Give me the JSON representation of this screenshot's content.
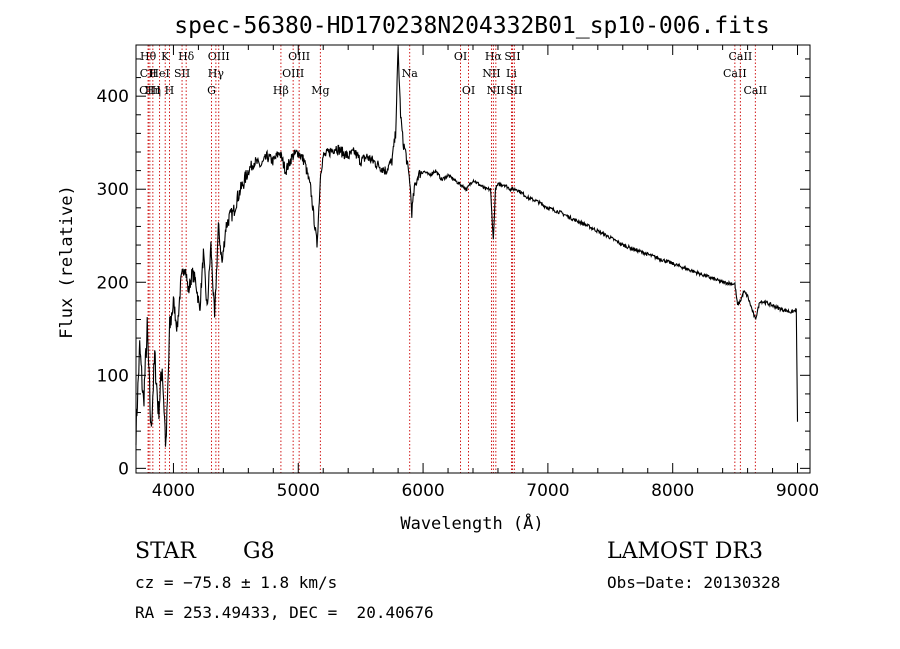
{
  "chart_data": {
    "type": "line",
    "title": "spec-56380-HD170238N204332B01_sp10-006.fits",
    "xlabel": "Wavelength (Å)",
    "ylabel": "Flux (relative)",
    "xlim": [
      3700,
      9100
    ],
    "ylim": [
      -5,
      455
    ],
    "xticks": [
      4000,
      5000,
      6000,
      7000,
      8000,
      9000
    ],
    "yticks": [
      0,
      100,
      200,
      300,
      400
    ],
    "series": [
      {
        "name": "flux",
        "x": [
          3700,
          3730,
          3760,
          3790,
          3820,
          3850,
          3880,
          3910,
          3940,
          3970,
          4000,
          4030,
          4060,
          4090,
          4120,
          4150,
          4180,
          4210,
          4240,
          4270,
          4300,
          4330,
          4360,
          4390,
          4420,
          4450,
          4480,
          4510,
          4540,
          4570,
          4600,
          4650,
          4700,
          4750,
          4800,
          4850,
          4900,
          4950,
          5000,
          5050,
          5100,
          5150,
          5180,
          5200,
          5250,
          5300,
          5350,
          5400,
          5450,
          5500,
          5550,
          5600,
          5650,
          5700,
          5750,
          5780,
          5800,
          5820,
          5840,
          5860,
          5880,
          5893,
          5910,
          5930,
          5960,
          6000,
          6050,
          6100,
          6150,
          6200,
          6250,
          6300,
          6350,
          6400,
          6450,
          6500,
          6540,
          6563,
          6580,
          6600,
          6650,
          6700,
          6750,
          6800,
          6850,
          6900,
          6950,
          7000,
          7100,
          7200,
          7300,
          7400,
          7500,
          7600,
          7700,
          7800,
          7900,
          8000,
          8100,
          8200,
          8300,
          8400,
          8498,
          8520,
          8542,
          8570,
          8600,
          8662,
          8700,
          8750,
          8800,
          8850,
          8900,
          8950,
          8990,
          9000
        ],
        "values": [
          40,
          130,
          70,
          150,
          40,
          120,
          60,
          110,
          20,
          150,
          180,
          150,
          200,
          220,
          190,
          210,
          200,
          170,
          230,
          170,
          240,
          160,
          260,
          220,
          260,
          270,
          275,
          290,
          300,
          310,
          320,
          330,
          325,
          335,
          330,
          340,
          320,
          335,
          340,
          330,
          300,
          240,
          320,
          335,
          340,
          345,
          340,
          335,
          340,
          330,
          335,
          330,
          325,
          320,
          330,
          360,
          450,
          380,
          350,
          340,
          320,
          310,
          275,
          300,
          315,
          320,
          315,
          320,
          310,
          315,
          310,
          305,
          300,
          310,
          305,
          300,
          300,
          245,
          300,
          305,
          305,
          300,
          300,
          295,
          290,
          288,
          284,
          280,
          275,
          268,
          262,
          255,
          248,
          240,
          235,
          230,
          225,
          220,
          215,
          210,
          205,
          200,
          198,
          175,
          180,
          190,
          185,
          160,
          180,
          178,
          175,
          172,
          170,
          168,
          170,
          50
        ]
      }
    ],
    "line_markers": [
      {
        "label": "Hθ",
        "wavelength": 3797,
        "tier": 0
      },
      {
        "label": "CII",
        "wavelength": 3799,
        "tier": 1
      },
      {
        "label": "CIII",
        "wavelength": 3811,
        "tier": 2
      },
      {
        "label": "Hη",
        "wavelength": 3835,
        "tier": 2
      },
      {
        "label": "HeI",
        "wavelength": 3889,
        "tier": 1
      },
      {
        "label": "K",
        "wavelength": 3934,
        "tier": 0
      },
      {
        "label": "H",
        "wavelength": 3968,
        "tier": 2
      },
      {
        "label": "SII",
        "wavelength": 4069,
        "tier": 1
      },
      {
        "label": "Hδ",
        "wavelength": 4102,
        "tier": 0
      },
      {
        "label": "OIII",
        "wavelength": 4363,
        "tier": 0
      },
      {
        "label": "Hγ",
        "wavelength": 4340,
        "tier": 1
      },
      {
        "label": "G",
        "wavelength": 4305,
        "tier": 2
      },
      {
        "label": "Hβ",
        "wavelength": 4861,
        "tier": 2
      },
      {
        "label": "OIII",
        "wavelength": 4959,
        "tier": 1
      },
      {
        "label": "OIII",
        "wavelength": 5007,
        "tier": 0
      },
      {
        "label": "Mg",
        "wavelength": 5177,
        "tier": 2
      },
      {
        "label": "Na",
        "wavelength": 5893,
        "tier": 1
      },
      {
        "label": "OI",
        "wavelength": 6300,
        "tier": 0
      },
      {
        "label": "OI",
        "wavelength": 6364,
        "tier": 2
      },
      {
        "label": "Hα",
        "wavelength": 6563,
        "tier": 0
      },
      {
        "label": "NII",
        "wavelength": 6548,
        "tier": 1
      },
      {
        "label": "NII",
        "wavelength": 6583,
        "tier": 2
      },
      {
        "label": "Li",
        "wavelength": 6708,
        "tier": 1
      },
      {
        "label": "SII",
        "wavelength": 6716,
        "tier": 0
      },
      {
        "label": "SII",
        "wavelength": 6731,
        "tier": 2
      },
      {
        "label": "CaII",
        "wavelength": 8498,
        "tier": 1
      },
      {
        "label": "CaII",
        "wavelength": 8542,
        "tier": 0
      },
      {
        "label": "CaII",
        "wavelength": 8662,
        "tier": 2
      }
    ]
  },
  "info": {
    "object_class": "STAR",
    "subclass": "G8",
    "survey": "LAMOST DR3",
    "redshift": "cz = −75.8 ± 1.8 km/s",
    "obs_date": "Obs−Date: 20130328",
    "coordinates": "RA = 253.49433, DEC =  20.40676"
  },
  "colors": {
    "line": "#000000",
    "marker": "#cc0000",
    "text": "#000000",
    "background": "#ffffff"
  }
}
